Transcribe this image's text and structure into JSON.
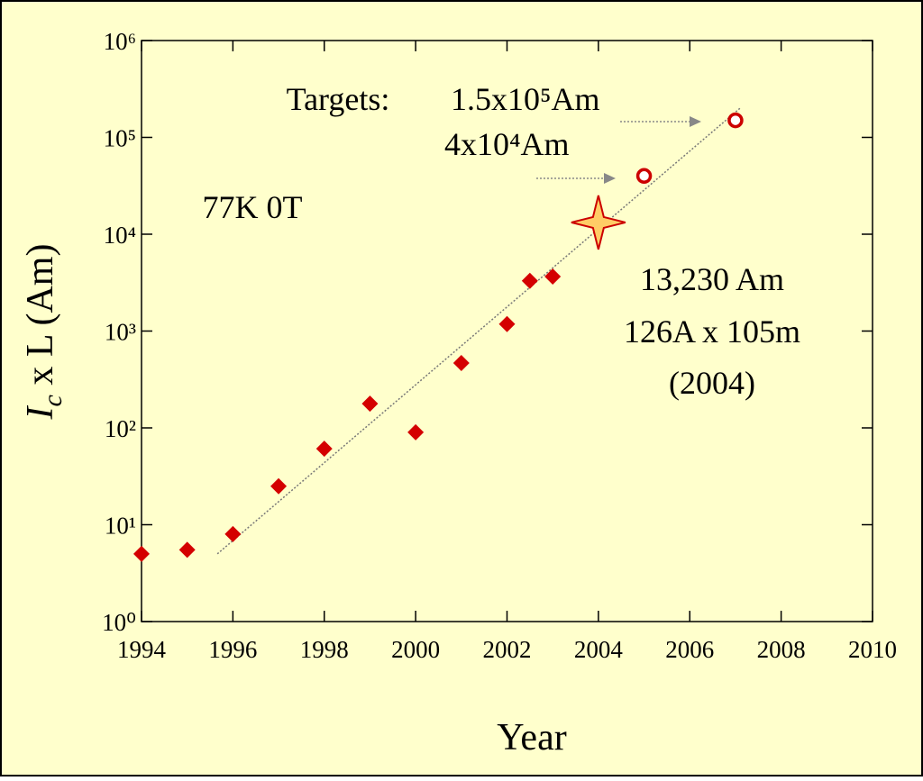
{
  "chart_data": {
    "type": "scatter",
    "x_label": "Year",
    "y_label": {
      "symbol": "I",
      "subscript": "c",
      "rest": " x L  (Am)"
    },
    "log_y": true,
    "xlim": [
      1994,
      2010
    ],
    "xticks": [
      1994,
      1996,
      1998,
      2000,
      2002,
      2004,
      2006,
      2008,
      2010
    ],
    "ylim": [
      1,
      1000000
    ],
    "yticks": [
      {
        "value": 1,
        "label": "10⁰"
      },
      {
        "value": 10,
        "label": "10¹"
      },
      {
        "value": 100,
        "label": "10²"
      },
      {
        "value": 1000,
        "label": "10³"
      },
      {
        "value": 10000,
        "label": "10⁴"
      },
      {
        "value": 100000,
        "label": "10⁵"
      },
      {
        "value": 1000000,
        "label": "10⁶"
      }
    ],
    "series": [
      {
        "marker": "diamond",
        "color": "#d40000",
        "x": [
          1994,
          1995,
          1996,
          1997,
          1998,
          1999,
          2000,
          2001,
          2002,
          2002.5,
          2003
        ],
        "values": [
          5,
          5.5,
          8,
          25,
          61,
          178,
          90,
          468,
          1180,
          3300,
          3650
        ]
      },
      {
        "marker": "star",
        "color": "#cc0000",
        "fill": "#ffcc66",
        "x": [
          2004
        ],
        "values": [
          13230
        ]
      },
      {
        "marker": "circle",
        "color": "#cc0000",
        "x": [
          2005,
          2007
        ],
        "values": [
          40000,
          150000
        ]
      }
    ],
    "trend": {
      "color": "#777777",
      "x": [
        1995.66,
        2007.1
      ],
      "values": [
        5,
        200000
      ]
    },
    "annotations": [
      "Targets:",
      "1.5x10⁵Am",
      "4x10⁴Am",
      "77K 0T",
      "13,230 Am",
      "126A x 105m",
      "(2004)"
    ]
  }
}
